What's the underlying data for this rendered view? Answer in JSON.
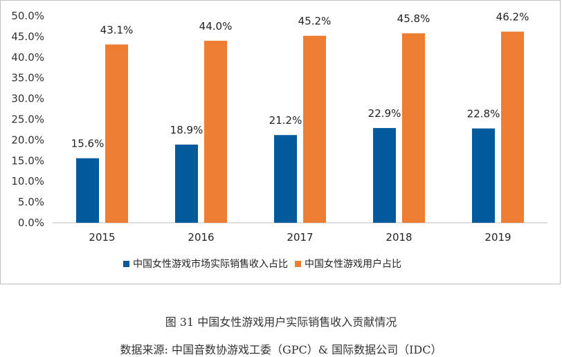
{
  "chart_data": {
    "type": "bar",
    "categories": [
      "2015",
      "2016",
      "2017",
      "2018",
      "2019"
    ],
    "series": [
      {
        "name": "中国女性游戏市场实际销售收入占比",
        "color": "#005A9C",
        "values": [
          15.6,
          18.9,
          21.2,
          22.9,
          22.8
        ]
      },
      {
        "name": "中国女性游戏用户占比",
        "color": "#ED7D31",
        "values": [
          43.1,
          44.0,
          45.2,
          45.8,
          46.2
        ]
      }
    ],
    "data_labels": [
      [
        "15.6%",
        "18.9%",
        "21.2%",
        "22.9%",
        "22.8%"
      ],
      [
        "43.1%",
        "44.0%",
        "45.2%",
        "45.8%",
        "46.2%"
      ]
    ],
    "ylim": [
      0,
      50
    ],
    "yticks": [
      "0.0%",
      "5.0%",
      "10.0%",
      "15.0%",
      "20.0%",
      "25.0%",
      "30.0%",
      "35.0%",
      "40.0%",
      "45.0%",
      "50.0%"
    ],
    "ytick_values": [
      0,
      5,
      10,
      15,
      20,
      25,
      30,
      35,
      40,
      45,
      50
    ],
    "legend_position": "bottom",
    "grid": false
  },
  "caption": {
    "title": "图 31  中国女性游戏用户实际销售收入贡献情况",
    "source": "数据来源: 中国音数协游戏工委（GPC）& 国际数据公司（IDC）"
  }
}
